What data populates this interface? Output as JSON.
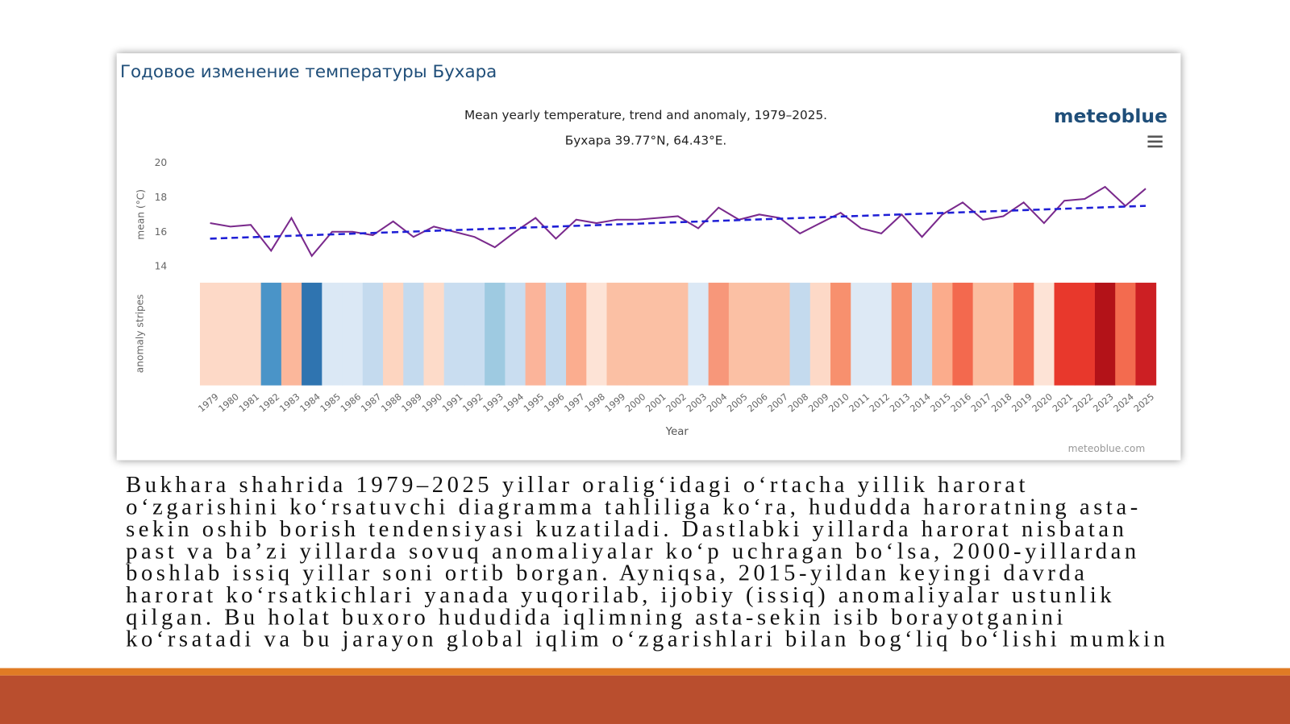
{
  "chart_data": {
    "type": "line",
    "panel_title": "Годовое изменение температуры Бухара",
    "title": "Mean yearly temperature, trend and anomaly, 1979–2025.",
    "subtitle": "Бухара 39.77°N, 64.43°E.",
    "brand": "meteoblue",
    "credit": "meteoblue.com",
    "y_label": "mean (°C)",
    "stripes_label": "anomaly stripes",
    "x_label": "Year",
    "x": [
      1979,
      1980,
      1981,
      1982,
      1983,
      1984,
      1985,
      1986,
      1987,
      1988,
      1989,
      1990,
      1991,
      1992,
      1993,
      1994,
      1995,
      1996,
      1997,
      1998,
      1999,
      2000,
      2001,
      2002,
      2003,
      2004,
      2005,
      2006,
      2007,
      2008,
      2009,
      2010,
      2011,
      2012,
      2013,
      2014,
      2015,
      2016,
      2017,
      2018,
      2019,
      2020,
      2021,
      2022,
      2023,
      2024,
      2025
    ],
    "series": [
      {
        "color": "#7a2a8c",
        "values": [
          16.5,
          16.3,
          16.4,
          14.9,
          16.8,
          14.6,
          16.0,
          16.0,
          15.8,
          16.6,
          15.7,
          16.3,
          16.0,
          15.7,
          15.1,
          16.0,
          16.8,
          15.6,
          16.7,
          16.5,
          16.7,
          16.7,
          16.8,
          16.9,
          16.2,
          17.4,
          16.7,
          17.0,
          16.8,
          15.9,
          16.5,
          17.1,
          16.2,
          15.9,
          17.0,
          15.7,
          17.0,
          17.7,
          16.7,
          16.9,
          17.7,
          16.5,
          17.8,
          17.9,
          18.6,
          17.5,
          18.5
        ]
      },
      {
        "color": "#1f1fd6",
        "dashed": true,
        "x": [
          1979,
          2025
        ],
        "values": [
          15.6,
          17.5
        ]
      }
    ],
    "stripe_colors": [
      "#fdd9c7",
      "#fdd9c7",
      "#fdd9c7",
      "#4a94c8",
      "#fbb79b",
      "#2f74b0",
      "#dbe8f5",
      "#dbe8f5",
      "#c4daee",
      "#fdd5c0",
      "#c4daee",
      "#fddbc9",
      "#c9ddf0",
      "#c9ddf0",
      "#9ecae1",
      "#c9ddf0",
      "#fbb49a",
      "#c4daee",
      "#fbad8f",
      "#fde3d6",
      "#fbc0a4",
      "#fbc0a4",
      "#fbc0a4",
      "#fbc0a4",
      "#dbe8f5",
      "#f7977a",
      "#fbc0a4",
      "#fbc0a4",
      "#fbc0a4",
      "#c4daee",
      "#fdd9c7",
      "#f7906e",
      "#dde9f5",
      "#dde9f5",
      "#f7906e",
      "#c9ddf0",
      "#fbac8c",
      "#f3694e",
      "#fbbd9f",
      "#fbbd9f",
      "#f36b4f",
      "#fde3d6",
      "#e8382c",
      "#e8382c",
      "#b31218",
      "#f36b4f",
      "#cc1f23"
    ],
    "xlim": [
      1978.5,
      2025.5
    ],
    "ylim": [
      14,
      20
    ],
    "yticks": [
      14,
      16,
      18,
      20
    ]
  },
  "paragraph": {
    "lines": [
      "Bukhara shahrida 1979–2025 yillar oralig‘idagi o‘rtacha yillik harorat",
      "o‘zgarishini ko‘rsatuvchi diagramma tahliliga ko‘ra, hududda haroratning asta-",
      "sekin oshib borish tendensiyasi kuzatiladi. Dastlabki yillarda harorat nisbatan",
      "past va ba’zi yillarda sovuq anomaliyalar ko‘p uchragan bo‘lsa, 2000-yillardan",
      "boshlab issiq yillar soni ortib borgan. Ayniqsa, 2015-yildan keyingi davrda",
      "harorat ko‘rsatkichlari yanada yuqorilab, ijobiy (issiq) anomaliyalar ustunlik",
      "qilgan. Bu holat buxoro hududida iqlimning asta-sekin isib borayotganini",
      "ko‘rsatadi va bu jarayon global iqlim o‘zgarishlari bilan bog‘liq bo‘lishi mumkin"
    ]
  }
}
